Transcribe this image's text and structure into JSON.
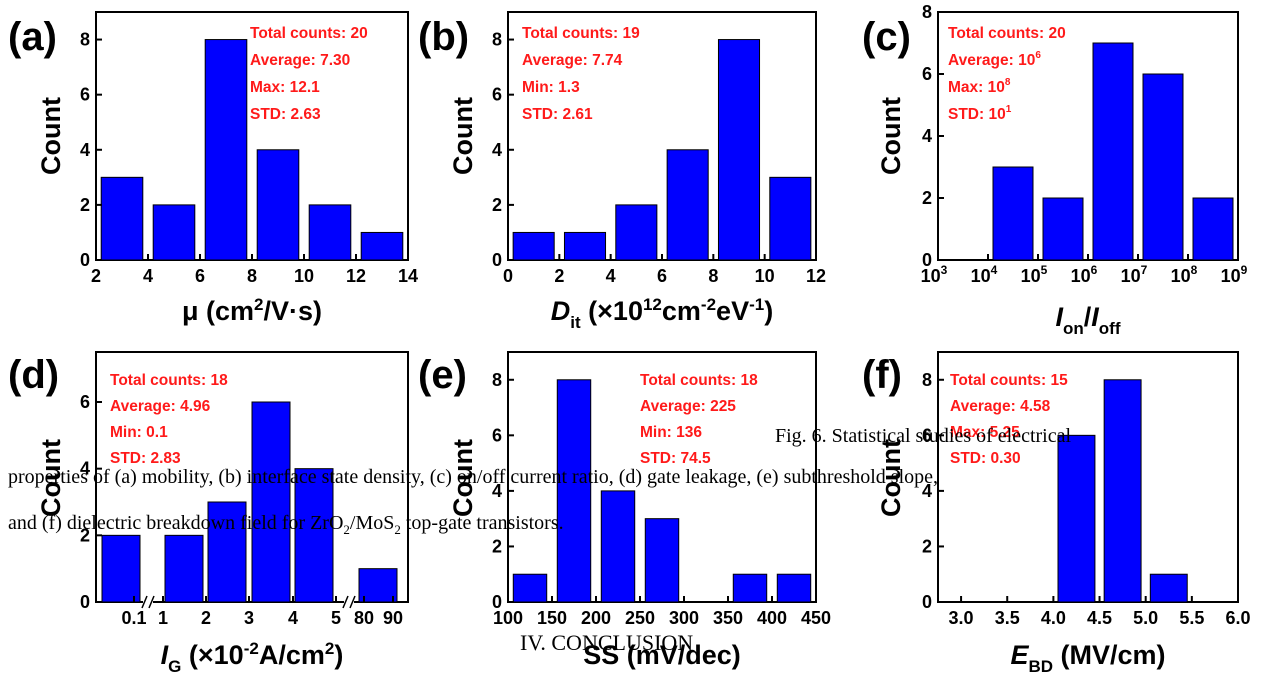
{
  "caption": {
    "line1": "Fig.   6.   Statistical   studies   of   electrical",
    "line2": "properties of (a) mobility, (b) interface state density, (c) on/off current ratio, (d) gate leakage, (e) subthreshold slope,",
    "line3_a": "and (f) dielectric breakdown field for ZrO",
    "line3_sub1": "2",
    "line3_b": "/MoS",
    "line3_sub2": "2",
    "line3_c": " top-gate transistors."
  },
  "conclusion": "IV.   CONCLUSION",
  "colors": {
    "bar": "#0000ff",
    "stats_text": "#ff1a1a"
  },
  "chart_data": [
    {
      "panel": "(a)",
      "type": "bar",
      "x": [
        3,
        5,
        7,
        9,
        11,
        13
      ],
      "values": [
        3,
        2,
        8,
        4,
        2,
        1
      ],
      "xlim": [
        2,
        14
      ],
      "ylim": [
        0,
        9
      ],
      "xticks": [
        "2",
        "4",
        "6",
        "8",
        "10",
        "12",
        "14"
      ],
      "yticks": [
        "0",
        "2",
        "4",
        "6",
        "8"
      ],
      "ylabel": "Count",
      "xlabel": {
        "main": "μ (cm",
        "sup1": "2",
        "rest": "/V",
        "dot": "·",
        "end": "s)"
      },
      "stats": [
        "Total counts: 20",
        "Average: 7.30",
        "Max: 12.1",
        "STD: 2.63"
      ]
    },
    {
      "panel": "(b)",
      "type": "bar",
      "x": [
        1,
        3,
        5,
        7,
        9,
        11
      ],
      "values": [
        1,
        1,
        2,
        4,
        8,
        3
      ],
      "xlim": [
        0,
        12
      ],
      "ylim": [
        0,
        9
      ],
      "xticks": [
        "0",
        "2",
        "4",
        "6",
        "8",
        "10",
        "12"
      ],
      "yticks": [
        "0",
        "2",
        "4",
        "6",
        "8"
      ],
      "ylabel": "Count",
      "xlabel": {
        "d": "D",
        "it": "it",
        "rest": " (×10",
        "sup1": "12",
        "cm": "cm",
        "sup2": "-2",
        "ev": "eV",
        "sup3": "-1",
        "end": ")"
      },
      "stats": [
        "Total counts: 19",
        "Average: 7.74",
        "Min: 1.3",
        "STD: 2.61"
      ]
    },
    {
      "panel": "(c)",
      "type": "bar",
      "xscale": "log",
      "x_exponent": [
        4.5,
        5.5,
        6.5,
        7.5,
        8.5
      ],
      "values": [
        3,
        2,
        7,
        6,
        2
      ],
      "xlim_exponent": [
        3,
        9
      ],
      "ylim": [
        0,
        8
      ],
      "xtick_base": "10",
      "xtick_exponents": [
        "3",
        "4",
        "5",
        "6",
        "7",
        "8",
        "9"
      ],
      "yticks": [
        "0",
        "2",
        "4",
        "6",
        "8"
      ],
      "ylabel": "Count",
      "xlabel": {
        "i1": "I",
        "on": "on",
        "slash": "/",
        "i2": "I",
        "off": "off"
      },
      "stats": [
        {
          "text": "Total counts: 20"
        },
        {
          "text": "Average: 10",
          "sup": "6"
        },
        {
          "text": "Max: 10",
          "sup": "8"
        },
        {
          "text": "STD: 10",
          "sup": "1"
        }
      ]
    },
    {
      "panel": "(d)",
      "type": "bar",
      "xscale": "broken",
      "bar_labels_position": [
        0.1,
        1.5,
        2.5,
        3.5,
        4.5,
        85
      ],
      "values": [
        2,
        2,
        3,
        6,
        4,
        1
      ],
      "ylim": [
        0,
        7.5
      ],
      "xticks": [
        "0.1",
        "1",
        "2",
        "3",
        "4",
        "5",
        "80",
        "90"
      ],
      "yticks": [
        "0",
        "2",
        "4",
        "6"
      ],
      "ylabel": "Count",
      "xlabel": {
        "i": "I",
        "g": "G",
        "rest": " (×10",
        "sup1": "-2",
        "a": "A/cm",
        "sup2": "2",
        "end": ")"
      },
      "stats": [
        "Total counts: 18",
        "Average: 4.96",
        "Min: 0.1",
        "STD: 2.83"
      ]
    },
    {
      "panel": "(e)",
      "type": "bar",
      "x": [
        125,
        175,
        225,
        275,
        375,
        425
      ],
      "values": [
        1,
        8,
        4,
        3,
        1,
        1
      ],
      "xlim": [
        100,
        450
      ],
      "ylim": [
        0,
        9
      ],
      "xticks": [
        "100",
        "150",
        "200",
        "250",
        "300",
        "350",
        "400",
        "450"
      ],
      "yticks": [
        "0",
        "2",
        "4",
        "6",
        "8"
      ],
      "ylabel": "Count",
      "xlabel": "SS (mV/dec)",
      "stats": [
        "Total counts: 18",
        "Average: 225",
        "Min: 136",
        "STD: 74.5"
      ]
    },
    {
      "panel": "(f)",
      "type": "bar",
      "x": [
        4.25,
        4.75,
        5.25
      ],
      "values": [
        6,
        8,
        1
      ],
      "xlim": [
        2.75,
        6.0
      ],
      "ylim": [
        0,
        9
      ],
      "xticks": [
        "3.0",
        "3.5",
        "4.0",
        "4.5",
        "5.0",
        "5.5",
        "6.0"
      ],
      "yticks": [
        "0",
        "2",
        "4",
        "6",
        "8"
      ],
      "ylabel": "Count",
      "xlabel": {
        "e": "E",
        "bd": "BD",
        "rest": " (MV/cm)"
      },
      "stats": [
        "Total counts: 15",
        "Average: 4.58",
        "Max: 5.25",
        "STD: 0.30"
      ]
    }
  ]
}
